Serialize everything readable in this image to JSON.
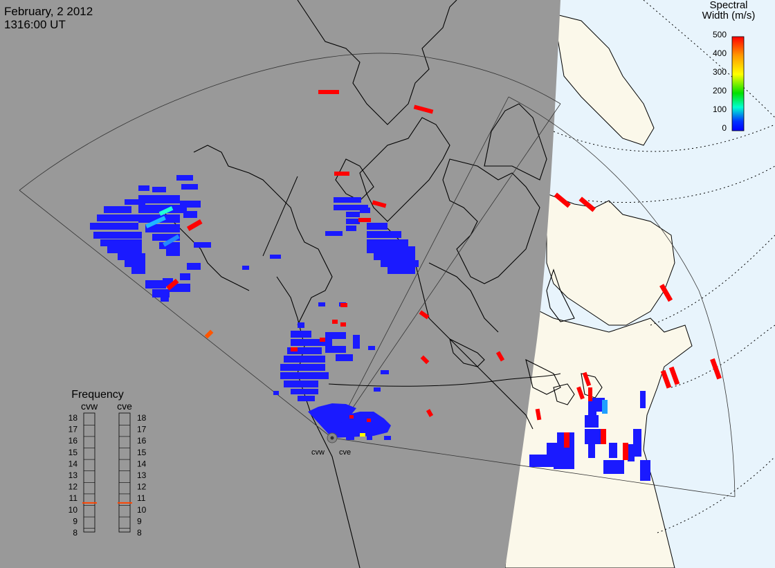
{
  "title": {
    "date": "February, 2 2012",
    "time": "1316:00 UT"
  },
  "colorbar": {
    "title_line1": "Spectral",
    "title_line2": "Width (m/s)",
    "ticks": [
      "500",
      "400",
      "300",
      "200",
      "100",
      "0"
    ],
    "stops": [
      "#ff0000",
      "#ff9900",
      "#ffff00",
      "#00e000",
      "#00ffd0",
      "#0033ff",
      "#0000ff"
    ]
  },
  "frequency_panel": {
    "title": "Frequency",
    "radars": [
      {
        "name": "cvw",
        "value_mhz": 10.6
      },
      {
        "name": "cve",
        "value_mhz": 10.6
      }
    ],
    "scale": [
      "18",
      "17",
      "16",
      "15",
      "14",
      "13",
      "12",
      "11",
      "10",
      "9",
      "8"
    ]
  },
  "radar_sites": [
    {
      "name": "cvw"
    },
    {
      "name": "cve"
    }
  ],
  "colors": {
    "night": "#999999",
    "day_land": "#fbf8ea",
    "day_ocean": "#e8f4fc",
    "low_width": "#1a1aff",
    "high_width": "#ff0000"
  }
}
